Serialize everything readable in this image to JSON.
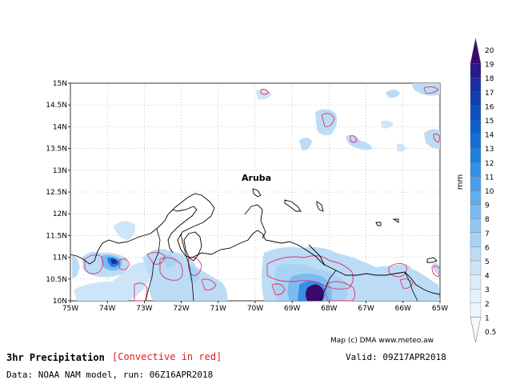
{
  "map": {
    "place_label": "Aruba",
    "lat_labels": [
      "15N",
      "14.5N",
      "14N",
      "13.5N",
      "13N",
      "12.5N",
      "12N",
      "11.5N",
      "11N",
      "10.5N",
      "10N"
    ],
    "lon_labels": [
      "75W",
      "74W",
      "73W",
      "72W",
      "71W",
      "70W",
      "69W",
      "68W",
      "67W",
      "66W",
      "65W"
    ],
    "grid": true,
    "coast_color": "#000000",
    "convective_contour_color": "#e0306a"
  },
  "footer": {
    "title": "3hr Precipitation",
    "convective_note": "[Convective in red]",
    "valid": "Valid: 09Z17APR2018",
    "data_source": "Data: NOAA NAM model, run: 06Z16APR2018",
    "credit": "Map (c) DMA www.meteo.aw"
  },
  "colorbar": {
    "unit": "mm",
    "labels": [
      "20",
      "19",
      "18",
      "17",
      "16",
      "15",
      "14",
      "13",
      "12",
      "11",
      "10",
      "9",
      "8",
      "7",
      "6",
      "5",
      "4",
      "3",
      "2",
      "1",
      "0.5"
    ],
    "colors": [
      "#3b0a6e",
      "#2a1a8a",
      "#1d2f9e",
      "#143fb0",
      "#0f4fc0",
      "#0e5fcc",
      "#1470d8",
      "#2080e0",
      "#3590e6",
      "#4a9ee9",
      "#62adec",
      "#7bbbef",
      "#92c7f2",
      "#a8d2f4",
      "#bcdcf6",
      "#cde5f8",
      "#daecfa",
      "#e6f2fb",
      "#eef6fc",
      "#f5f9fe"
    ]
  }
}
